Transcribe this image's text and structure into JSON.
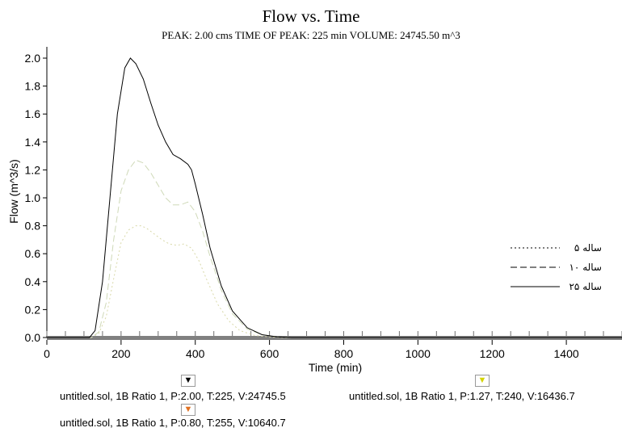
{
  "chart_data": {
    "type": "line",
    "title": "Flow vs. Time",
    "subtitle": "PEAK: 2.00 cms  TIME OF PEAK: 225 min  VOLUME: 24745.50 m^3",
    "xlabel": "Time (min)",
    "ylabel": "Flow (m^3/s)",
    "xlim": [
      0,
      1550
    ],
    "ylim": [
      0,
      2.0
    ],
    "xticks": [
      0,
      200,
      400,
      600,
      800,
      1000,
      1200,
      1400
    ],
    "yticks": [
      0.0,
      0.2,
      0.4,
      0.6,
      0.8,
      1.0,
      1.2,
      1.4,
      1.6,
      1.8,
      2.0
    ],
    "grid": false,
    "legend_position": "right",
    "series": [
      {
        "name": "۵ ساله",
        "style": "dotted",
        "color": "#d8d8a8",
        "x": [
          0,
          120,
          140,
          160,
          180,
          200,
          220,
          240,
          255,
          270,
          290,
          310,
          330,
          350,
          370,
          390,
          410,
          430,
          460,
          490,
          520,
          560,
          600,
          640,
          1550
        ],
        "y": [
          0,
          0,
          0.03,
          0.15,
          0.42,
          0.68,
          0.77,
          0.8,
          0.8,
          0.78,
          0.74,
          0.7,
          0.67,
          0.66,
          0.67,
          0.64,
          0.55,
          0.42,
          0.24,
          0.12,
          0.05,
          0.015,
          0.004,
          0,
          0
        ]
      },
      {
        "name": "۱۰ ساله",
        "style": "dashed",
        "color": "#cfd9b8",
        "x": [
          0,
          120,
          140,
          160,
          180,
          200,
          220,
          240,
          260,
          280,
          300,
          320,
          340,
          360,
          380,
          400,
          420,
          440,
          470,
          500,
          540,
          580,
          620,
          660,
          1550
        ],
        "y": [
          0,
          0,
          0.04,
          0.25,
          0.7,
          1.05,
          1.2,
          1.27,
          1.25,
          1.18,
          1.09,
          1.0,
          0.95,
          0.95,
          0.97,
          0.9,
          0.76,
          0.58,
          0.34,
          0.17,
          0.06,
          0.02,
          0.005,
          0,
          0
        ]
      },
      {
        "name": "۲۵ ساله",
        "style": "solid",
        "color": "#000000",
        "x": [
          0,
          115,
          130,
          150,
          170,
          190,
          210,
          225,
          240,
          260,
          280,
          300,
          320,
          340,
          360,
          380,
          390,
          400,
          420,
          440,
          470,
          500,
          540,
          580,
          620,
          660,
          1550
        ],
        "y": [
          0,
          0,
          0.05,
          0.4,
          1.0,
          1.6,
          1.93,
          2.0,
          1.96,
          1.85,
          1.68,
          1.52,
          1.4,
          1.31,
          1.28,
          1.24,
          1.2,
          1.1,
          0.88,
          0.64,
          0.37,
          0.19,
          0.07,
          0.02,
          0.005,
          0,
          0
        ]
      }
    ]
  },
  "legend": {
    "items": [
      {
        "label": "۵ ساله"
      },
      {
        "label": "۱۰ ساله"
      },
      {
        "label": "۲۵ ساله"
      }
    ]
  },
  "cursors": [
    {
      "text": "untitled.sol, 1B Ratio 1, P:2.00, T:225, V:24745.5",
      "marker_color": "#000000"
    },
    {
      "text": "untitled.sol, 1B Ratio 1, P:1.27, T:240, V:16436.7",
      "marker_color": "#d4d400"
    },
    {
      "text": "untitled.sol, 1B Ratio 1, P:0.80, T:255, V:10640.7",
      "marker_color": "#e07020"
    }
  ]
}
